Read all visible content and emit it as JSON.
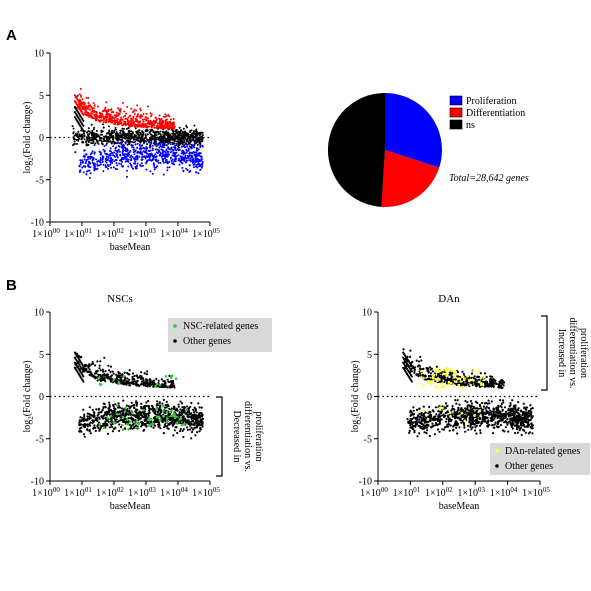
{
  "panels": {
    "a_letter": "A",
    "b_letter": "B"
  },
  "chart_data": [
    {
      "id": "ma_a",
      "type": "scatter",
      "title": "",
      "xlabel": "baseMean",
      "ylabel": "log2(Fold change)",
      "ylabel_main": "log",
      "ylabel_sub": "2",
      "ylabel_rest": "(Fold change)",
      "x_scale": "log10",
      "xlim": [
        1,
        100000
      ],
      "ylim": [
        -10,
        10
      ],
      "yticks": [
        10,
        5,
        0,
        -5,
        -10
      ],
      "ytick_labels": [
        "10",
        "5",
        "0",
        "-5",
        "-10"
      ],
      "xticks": [
        1,
        10,
        100,
        1000,
        10000,
        100000
      ],
      "xtick_labels": [
        {
          "base": "1×10",
          "exp": "00"
        },
        {
          "base": "1×10",
          "exp": "01"
        },
        {
          "base": "1×10",
          "exp": "02"
        },
        {
          "base": "1×10",
          "exp": "03"
        },
        {
          "base": "1×10",
          "exp": "04"
        },
        {
          "base": "1×10",
          "exp": "05"
        }
      ],
      "zero_line": "dotted",
      "series": [
        {
          "key": "up",
          "color": "#ff0000",
          "x_range": [
            6,
            8000
          ],
          "y_mean_curve": [
            [
              6,
              3.4
            ],
            [
              30,
              1.9
            ],
            [
              300,
              1.3
            ],
            [
              8000,
              1.0
            ]
          ],
          "y_spread": 0.6
        },
        {
          "key": "down",
          "color": "#0000ff",
          "x_range": [
            8,
            60000
          ],
          "y_mean_curve": [
            [
              8,
              -3.2
            ],
            [
              100,
              -2.2
            ],
            [
              3000,
              -2.0
            ],
            [
              60000,
              -2.7
            ]
          ],
          "y_spread": 0.8
        },
        {
          "key": "ns",
          "color": "#000000",
          "x_range": [
            5,
            60000
          ],
          "y_mean_curve": [
            [
              5,
              0
            ],
            [
              60000,
              0
            ]
          ],
          "y_spread": 0.9
        }
      ]
    },
    {
      "id": "pie",
      "type": "pie",
      "title": "",
      "slices": [
        {
          "name": "Proliferation",
          "value": 30,
          "color": "#0000ff"
        },
        {
          "name": "Differentiation",
          "value": 21,
          "color": "#ff0000"
        },
        {
          "name": "ns",
          "value": 49,
          "color": "#000000"
        }
      ],
      "legend": [
        "Proliferation",
        "Differentiation",
        "ns"
      ],
      "annotation": "Total=28,642 genes",
      "legend_position": "right"
    },
    {
      "id": "ma_nsc",
      "type": "scatter",
      "title": "NSCs",
      "xlabel": "baseMean",
      "ylabel": "log2(Fold change)",
      "x_scale": "log10",
      "xlim": [
        1,
        100000
      ],
      "ylim": [
        -10,
        10
      ],
      "yticks": [
        10,
        5,
        0,
        -5,
        -10
      ],
      "legend": [
        {
          "label": "NSC-related genes",
          "color": "#33cc33"
        },
        {
          "label": "Other genes",
          "color": "#000000"
        }
      ],
      "legend_position": "top-right",
      "bracket_annotation": {
        "text_lines": [
          "Decreased in",
          "differentiation vs.",
          "proliferation"
        ],
        "side": "lower-right"
      },
      "highlight": {
        "color": "#33cc33",
        "x_range": [
          30,
          20000
        ],
        "y_range_neg": [
          -4,
          -1
        ],
        "y_range_pos": [
          1.2,
          2.5
        ]
      }
    },
    {
      "id": "ma_dan",
      "type": "scatter",
      "title": "DAn",
      "xlabel": "baseMean",
      "ylabel": "log2(Fold change)",
      "x_scale": "log10",
      "xlim": [
        1,
        100000
      ],
      "ylim": [
        -10,
        10
      ],
      "yticks": [
        10,
        5,
        0,
        -5,
        -10
      ],
      "legend": [
        {
          "label": "DAn-related genes",
          "color": "#ffff33"
        },
        {
          "label": "Other genes",
          "color": "#000000"
        }
      ],
      "legend_position": "bottom-right",
      "bracket_annotation": {
        "text_lines": [
          "Increased in",
          "differentiation vs.",
          "proliferation"
        ],
        "side": "upper-right"
      },
      "highlight": {
        "color": "#ffff33",
        "x_range": [
          20,
          2000
        ],
        "y_range_neg": [
          -3,
          -1
        ],
        "y_range_pos": [
          1.0,
          3.5
        ]
      }
    }
  ]
}
